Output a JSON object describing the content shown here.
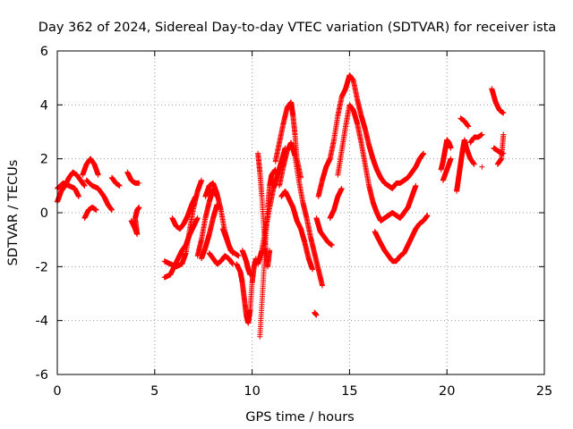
{
  "chart_data": {
    "type": "scatter",
    "title": "Day 362 of 2024, Sidereal Day-to-day VTEC variation (SDTVAR) for receiver ista",
    "xlabel": "GPS time / hours",
    "ylabel": "SDTVAR / TECUs",
    "xlim": [
      0,
      25
    ],
    "ylim": [
      -6,
      6
    ],
    "xticks": [
      "0",
      "5",
      "10",
      "15",
      "20",
      "25"
    ],
    "yticks": [
      "-6",
      "-4",
      "-2",
      "0",
      "2",
      "4",
      "6"
    ],
    "grid": true,
    "marker": "+",
    "color": "#ff0000",
    "series": [
      {
        "name": "SDTVAR",
        "arcs": [
          [
            [
              0.0,
              0.4
            ],
            [
              0.2,
              0.8
            ],
            [
              0.4,
              1.0
            ],
            [
              0.6,
              1.3
            ],
            [
              0.8,
              1.5
            ],
            [
              1.0,
              1.4
            ],
            [
              1.2,
              1.2
            ],
            [
              1.4,
              1.0
            ]
          ],
          [
            [
              0.0,
              0.9
            ],
            [
              0.3,
              1.1
            ],
            [
              0.6,
              1.0
            ],
            [
              0.9,
              0.9
            ],
            [
              1.1,
              0.6
            ]
          ],
          [
            [
              1.3,
              1.4
            ],
            [
              1.5,
              1.8
            ],
            [
              1.7,
              2.0
            ],
            [
              1.9,
              1.8
            ],
            [
              2.1,
              1.4
            ]
          ],
          [
            [
              1.5,
              1.2
            ],
            [
              1.8,
              1.0
            ],
            [
              2.1,
              0.9
            ],
            [
              2.4,
              0.6
            ],
            [
              2.6,
              0.3
            ],
            [
              2.8,
              0.1
            ]
          ],
          [
            [
              1.4,
              -0.2
            ],
            [
              1.6,
              0.1
            ],
            [
              1.8,
              0.2
            ],
            [
              2.0,
              0.1
            ]
          ],
          [
            [
              2.8,
              1.3
            ],
            [
              3.0,
              1.1
            ],
            [
              3.2,
              1.0
            ]
          ],
          [
            [
              3.6,
              1.5
            ],
            [
              3.8,
              1.2
            ],
            [
              4.0,
              1.1
            ],
            [
              4.2,
              1.1
            ]
          ],
          [
            [
              3.8,
              -0.3
            ],
            [
              4.0,
              -0.6
            ],
            [
              4.1,
              -0.8
            ],
            [
              4.0,
              -0.2
            ],
            [
              4.1,
              0.1
            ],
            [
              4.2,
              0.2
            ]
          ],
          [
            [
              5.5,
              -2.4
            ],
            [
              5.8,
              -2.3
            ],
            [
              6.0,
              -2.0
            ],
            [
              6.2,
              -1.7
            ],
            [
              6.4,
              -1.4
            ],
            [
              6.6,
              -1.2
            ],
            [
              6.8,
              -0.8
            ],
            [
              7.0,
              -0.5
            ],
            [
              7.2,
              -0.2
            ]
          ],
          [
            [
              5.5,
              -1.8
            ],
            [
              5.8,
              -1.9
            ],
            [
              6.1,
              -2.0
            ],
            [
              6.4,
              -1.9
            ],
            [
              6.6,
              -1.5
            ],
            [
              6.8,
              -0.6
            ],
            [
              7.0,
              0.2
            ],
            [
              7.2,
              0.8
            ],
            [
              7.4,
              1.2
            ]
          ],
          [
            [
              5.9,
              -0.2
            ],
            [
              6.1,
              -0.5
            ],
            [
              6.3,
              -0.6
            ],
            [
              6.5,
              -0.4
            ],
            [
              6.7,
              -0.1
            ],
            [
              6.9,
              0.3
            ],
            [
              7.1,
              0.6
            ]
          ],
          [
            [
              7.2,
              -1.6
            ],
            [
              7.4,
              -1.0
            ],
            [
              7.6,
              -0.2
            ],
            [
              7.8,
              0.4
            ],
            [
              8.0,
              0.9
            ],
            [
              8.2,
              0.6
            ]
          ],
          [
            [
              7.4,
              -1.7
            ],
            [
              7.6,
              -1.3
            ],
            [
              7.8,
              -0.8
            ],
            [
              8.0,
              -0.2
            ],
            [
              8.2,
              0.3
            ]
          ],
          [
            [
              7.6,
              0.6
            ],
            [
              7.8,
              1.0
            ],
            [
              8.0,
              1.1
            ],
            [
              8.2,
              0.7
            ],
            [
              8.4,
              0.1
            ],
            [
              8.6,
              -0.7
            ],
            [
              8.8,
              -1.2
            ],
            [
              9.0,
              -1.5
            ]
          ],
          [
            [
              7.8,
              -1.5
            ],
            [
              8.0,
              -1.7
            ],
            [
              8.2,
              -1.9
            ],
            [
              8.4,
              -1.8
            ],
            [
              8.6,
              -1.6
            ],
            [
              8.8,
              -1.7
            ],
            [
              9.0,
              -1.9
            ]
          ],
          [
            [
              8.5,
              -0.6
            ],
            [
              8.7,
              -1.0
            ],
            [
              8.9,
              -1.4
            ],
            [
              9.1,
              -1.5
            ],
            [
              9.3,
              -1.6
            ]
          ],
          [
            [
              9.2,
              -1.9
            ],
            [
              9.4,
              -2.2
            ],
            [
              9.5,
              -2.6
            ],
            [
              9.6,
              -3.2
            ],
            [
              9.7,
              -3.8
            ],
            [
              9.8,
              -4.1
            ],
            [
              9.9,
              -3.6
            ],
            [
              10.0,
              -2.6
            ],
            [
              10.1,
              -2.0
            ],
            [
              10.2,
              -1.7
            ]
          ],
          [
            [
              9.5,
              -1.4
            ],
            [
              9.7,
              -1.8
            ],
            [
              9.8,
              -2.1
            ],
            [
              9.9,
              -2.3
            ]
          ],
          [
            [
              10.3,
              2.2
            ],
            [
              10.4,
              1.5
            ],
            [
              10.5,
              0.6
            ],
            [
              10.6,
              -0.5
            ],
            [
              10.7,
              -1.4
            ],
            [
              10.8,
              -2.0
            ],
            [
              10.9,
              -1.4
            ]
          ],
          [
            [
              10.4,
              -4.6
            ],
            [
              10.5,
              -3.4
            ],
            [
              10.6,
              -2.2
            ],
            [
              10.7,
              -1.0
            ],
            [
              10.8,
              0.2
            ],
            [
              10.9,
              1.0
            ],
            [
              11.0,
              1.4
            ],
            [
              11.2,
              1.6
            ]
          ],
          [
            [
              10.3,
              -1.9
            ],
            [
              10.5,
              -1.4
            ],
            [
              10.7,
              -0.6
            ],
            [
              10.9,
              0.2
            ],
            [
              11.1,
              0.9
            ],
            [
              11.3,
              1.4
            ],
            [
              11.5,
              1.9
            ],
            [
              11.7,
              2.4
            ]
          ],
          [
            [
              11.2,
              1.9
            ],
            [
              11.4,
              2.6
            ],
            [
              11.6,
              3.3
            ],
            [
              11.8,
              3.9
            ],
            [
              12.0,
              4.1
            ],
            [
              12.1,
              3.6
            ],
            [
              12.2,
              2.9
            ],
            [
              12.3,
              2.0
            ],
            [
              12.5,
              1.3
            ]
          ],
          [
            [
              11.4,
              1.0
            ],
            [
              11.6,
              1.7
            ],
            [
              11.8,
              2.3
            ],
            [
              12.0,
              2.6
            ],
            [
              12.2,
              2.1
            ],
            [
              12.4,
              1.2
            ],
            [
              12.6,
              0.4
            ],
            [
              12.8,
              -0.2
            ],
            [
              13.0,
              -0.9
            ],
            [
              13.2,
              -1.5
            ],
            [
              13.4,
              -2.1
            ],
            [
              13.6,
              -2.7
            ]
          ],
          [
            [
              11.5,
              0.6
            ],
            [
              11.7,
              0.8
            ],
            [
              11.9,
              0.5
            ],
            [
              12.1,
              0.2
            ],
            [
              12.3,
              -0.3
            ],
            [
              12.5,
              -0.6
            ],
            [
              12.7,
              -1.1
            ],
            [
              12.9,
              -1.7
            ],
            [
              13.1,
              -2.1
            ]
          ],
          [
            [
              13.3,
              -0.2
            ],
            [
              13.5,
              -0.7
            ],
            [
              13.7,
              -0.9
            ],
            [
              13.9,
              -1.1
            ],
            [
              14.1,
              -1.2
            ]
          ],
          [
            [
              13.2,
              -3.7
            ],
            [
              13.3,
              -3.8
            ]
          ],
          [
            [
              13.4,
              0.6
            ],
            [
              13.6,
              1.2
            ],
            [
              13.8,
              1.7
            ],
            [
              14.0,
              2.0
            ],
            [
              14.2,
              2.7
            ],
            [
              14.4,
              3.6
            ],
            [
              14.6,
              4.3
            ],
            [
              14.8,
              4.6
            ],
            [
              15.0,
              5.1
            ],
            [
              15.2,
              4.9
            ],
            [
              15.4,
              4.2
            ],
            [
              15.6,
              3.6
            ],
            [
              15.8,
              3.1
            ],
            [
              16.0,
              2.5
            ],
            [
              16.2,
              2.0
            ],
            [
              16.4,
              1.6
            ],
            [
              16.6,
              1.3
            ],
            [
              16.8,
              1.1
            ],
            [
              17.0,
              1.0
            ],
            [
              17.2,
              0.9
            ],
            [
              17.4,
              1.1
            ],
            [
              17.6,
              1.1
            ],
            [
              17.8,
              1.2
            ],
            [
              18.0,
              1.3
            ],
            [
              18.2,
              1.5
            ],
            [
              18.4,
              1.7
            ],
            [
              18.6,
              2.0
            ],
            [
              18.8,
              2.2
            ]
          ],
          [
            [
              14.4,
              1.4
            ],
            [
              14.6,
              2.3
            ],
            [
              14.8,
              3.2
            ],
            [
              15.0,
              4.0
            ],
            [
              15.2,
              3.8
            ],
            [
              15.4,
              3.3
            ],
            [
              15.6,
              2.6
            ],
            [
              15.8,
              1.8
            ],
            [
              16.0,
              1.0
            ],
            [
              16.2,
              0.4
            ],
            [
              16.4,
              0.0
            ],
            [
              16.6,
              -0.3
            ],
            [
              16.8,
              -0.2
            ],
            [
              17.0,
              -0.1
            ],
            [
              17.2,
              0.0
            ],
            [
              17.4,
              -0.1
            ],
            [
              17.6,
              -0.2
            ],
            [
              17.8,
              0.0
            ],
            [
              18.0,
              0.2
            ],
            [
              18.2,
              0.6
            ],
            [
              18.4,
              1.0
            ]
          ],
          [
            [
              14.0,
              -0.2
            ],
            [
              14.2,
              0.1
            ],
            [
              14.4,
              0.6
            ],
            [
              14.6,
              0.9
            ]
          ],
          [
            [
              16.3,
              -0.7
            ],
            [
              16.5,
              -1.0
            ],
            [
              16.8,
              -1.4
            ],
            [
              17.0,
              -1.6
            ],
            [
              17.2,
              -1.8
            ],
            [
              17.4,
              -1.8
            ],
            [
              17.6,
              -1.6
            ],
            [
              17.8,
              -1.5
            ],
            [
              18.0,
              -1.2
            ],
            [
              18.2,
              -0.9
            ],
            [
              18.4,
              -0.6
            ],
            [
              18.6,
              -0.4
            ],
            [
              18.8,
              -0.3
            ],
            [
              19.0,
              -0.1
            ]
          ],
          [
            [
              19.7,
              1.6
            ],
            [
              19.8,
              1.9
            ],
            [
              19.9,
              2.3
            ],
            [
              20.0,
              2.7
            ],
            [
              20.1,
              2.6
            ],
            [
              20.2,
              2.4
            ]
          ],
          [
            [
              19.8,
              1.2
            ],
            [
              20.0,
              1.6
            ],
            [
              20.2,
              2.0
            ]
          ],
          [
            [
              20.5,
              0.8
            ],
            [
              20.6,
              1.3
            ],
            [
              20.7,
              1.8
            ],
            [
              20.8,
              2.3
            ],
            [
              20.9,
              2.7
            ],
            [
              21.0,
              2.4
            ],
            [
              21.2,
              2.0
            ],
            [
              21.4,
              1.8
            ]
          ],
          [
            [
              20.7,
              3.5
            ],
            [
              20.9,
              3.4
            ],
            [
              21.1,
              3.2
            ]
          ],
          [
            [
              21.2,
              2.6
            ],
            [
              21.4,
              2.8
            ],
            [
              21.6,
              2.8
            ],
            [
              21.8,
              2.9
            ]
          ],
          [
            [
              21.8,
              1.7
            ]
          ],
          [
            [
              22.3,
              4.6
            ],
            [
              22.5,
              4.1
            ],
            [
              22.7,
              3.8
            ],
            [
              22.9,
              3.7
            ]
          ],
          [
            [
              22.4,
              2.4
            ],
            [
              22.6,
              2.3
            ],
            [
              22.8,
              2.2
            ],
            [
              22.9,
              2.2
            ]
          ],
          [
            [
              22.6,
              1.8
            ],
            [
              22.8,
              2.0
            ],
            [
              22.9,
              2.9
            ]
          ]
        ]
      }
    ]
  }
}
